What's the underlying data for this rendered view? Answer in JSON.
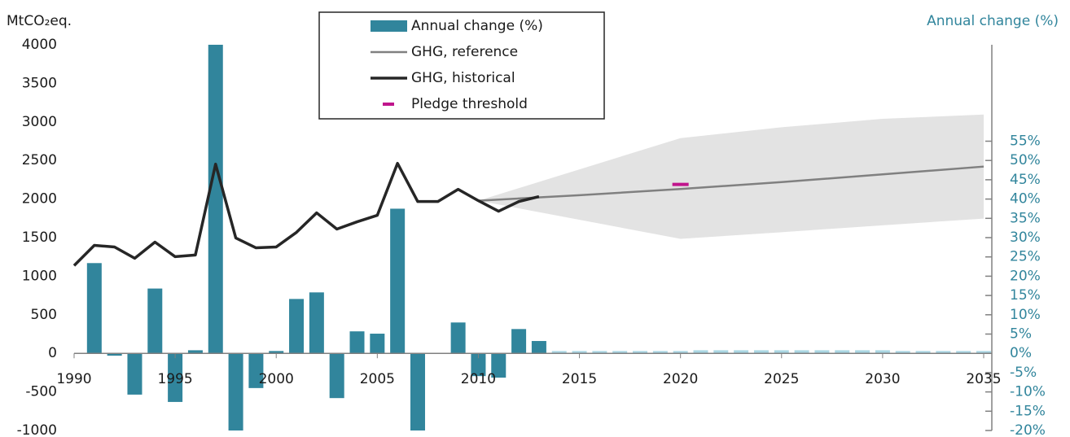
{
  "chart_data": {
    "type": "combo",
    "y_label": "MtCO₂eq.",
    "y2_label": "Annual change (%)",
    "xlim": [
      1990,
      2035
    ],
    "xticks": [
      1990,
      1995,
      2000,
      2005,
      2010,
      2015,
      2020,
      2025,
      2030,
      2035
    ],
    "ylim": [
      -1000,
      4000
    ],
    "yticks": [
      -1000,
      -500,
      0,
      500,
      1000,
      1500,
      2000,
      2500,
      3000,
      3500,
      4000
    ],
    "y2lim": [
      -20,
      80
    ],
    "y2ticks": [
      {
        "value": -20,
        "label": "-20%"
      },
      {
        "value": -15,
        "label": "-15%"
      },
      {
        "value": -10,
        "label": "-10%"
      },
      {
        "value": -5,
        "label": "-5%"
      },
      {
        "value": 0,
        "label": "0%"
      },
      {
        "value": 5,
        "label": "5%"
      },
      {
        "value": 10,
        "label": "10%"
      },
      {
        "value": 15,
        "label": "15%"
      },
      {
        "value": 20,
        "label": "20%"
      },
      {
        "value": 25,
        "label": "25%"
      },
      {
        "value": 30,
        "label": "30%"
      },
      {
        "value": 35,
        "label": "35%"
      },
      {
        "value": 40,
        "label": "40%"
      },
      {
        "value": 45,
        "label": "45%"
      },
      {
        "value": 50,
        "label": "50%"
      },
      {
        "value": 55,
        "label": "55%"
      }
    ],
    "legend_position": "top",
    "band": {
      "x": [
        2010,
        2020,
        2025,
        2030,
        2035
      ],
      "high": [
        1979,
        2790,
        2930,
        3040,
        3095
      ],
      "low": [
        1979,
        1484,
        1570,
        1660,
        1747
      ],
      "color": "#e3e3e3"
    },
    "series": [
      {
        "name": "Annual change (%)",
        "type": "bar",
        "axis": "y2",
        "color": "#31859c",
        "x": [
          1991,
          1992,
          1993,
          1994,
          1995,
          1996,
          1997,
          1998,
          1999,
          2000,
          2001,
          2002,
          2003,
          2004,
          2005,
          2006,
          2007,
          2008,
          2009,
          2010,
          2011,
          2012,
          2013,
          2014,
          2015,
          2016,
          2017,
          2018,
          2019,
          2020,
          2021,
          2022,
          2023,
          2024,
          2025,
          2026,
          2027,
          2028,
          2029,
          2030,
          2031,
          2032,
          2033,
          2034,
          2035
        ],
        "values": [
          23.4,
          -0.6,
          -10.7,
          16.8,
          -12.6,
          0.8,
          80,
          -20,
          -9,
          0.6,
          14.1,
          15.8,
          -11.6,
          5.7,
          5.1,
          37.5,
          -20,
          0,
          8,
          -5.9,
          -6.3,
          6.3,
          3.2,
          0.6,
          0.6,
          0.6,
          0.6,
          0.6,
          0.6,
          0.6,
          0.8,
          0.8,
          0.8,
          0.8,
          0.8,
          0.8,
          0.8,
          0.8,
          0.8,
          0.8,
          0.6,
          0.6,
          0.6,
          0.6,
          0.6
        ],
        "colors": [
          "#31859c",
          "#31859c",
          "#31859c",
          "#31859c",
          "#31859c",
          "#31859c",
          "#31859c",
          "#31859c",
          "#31859c",
          "#31859c",
          "#31859c",
          "#31859c",
          "#31859c",
          "#31859c",
          "#31859c",
          "#31859c",
          "#31859c",
          "#31859c",
          "#31859c",
          "#31859c",
          "#31859c",
          "#31859c",
          "#31859c",
          "#a9d6e3",
          "#a9d6e3",
          "#a9d6e3",
          "#a9d6e3",
          "#a9d6e3",
          "#a9d6e3",
          "#a9d6e3",
          "#a9d6e3",
          "#a9d6e3",
          "#a9d6e3",
          "#a9d6e3",
          "#a9d6e3",
          "#a9d6e3",
          "#a9d6e3",
          "#a9d6e3",
          "#a9d6e3",
          "#a9d6e3",
          "#a9d6e3",
          "#a9d6e3",
          "#a9d6e3",
          "#a9d6e3",
          "#a9d6e3"
        ]
      },
      {
        "name": "GHG, reference",
        "type": "line",
        "color": "#808080",
        "x": [
          2010,
          2015,
          2020,
          2025,
          2030,
          2035
        ],
        "values": [
          1979,
          2050,
          2130,
          2220,
          2320,
          2421
        ]
      },
      {
        "name": "GHG, historical",
        "type": "line",
        "color": "#262626",
        "x": [
          1990,
          1991,
          1992,
          1993,
          1994,
          1995,
          1996,
          1997,
          1998,
          1999,
          2000,
          2001,
          2002,
          2003,
          2004,
          2005,
          2006,
          2007,
          2008,
          2009,
          2010,
          2011,
          2012,
          2013
        ],
        "values": [
          1137,
          1400,
          1379,
          1232,
          1442,
          1253,
          1274,
          2453,
          1495,
          1368,
          1379,
          1568,
          1821,
          1611,
          1705,
          1789,
          2463,
          1968,
          1968,
          2126,
          1979,
          1842,
          1968,
          2032
        ]
      },
      {
        "name": "Pledge threshold",
        "type": "marker",
        "color": "#c0158c",
        "x": [
          2020
        ],
        "values": [
          2190
        ]
      }
    ]
  }
}
